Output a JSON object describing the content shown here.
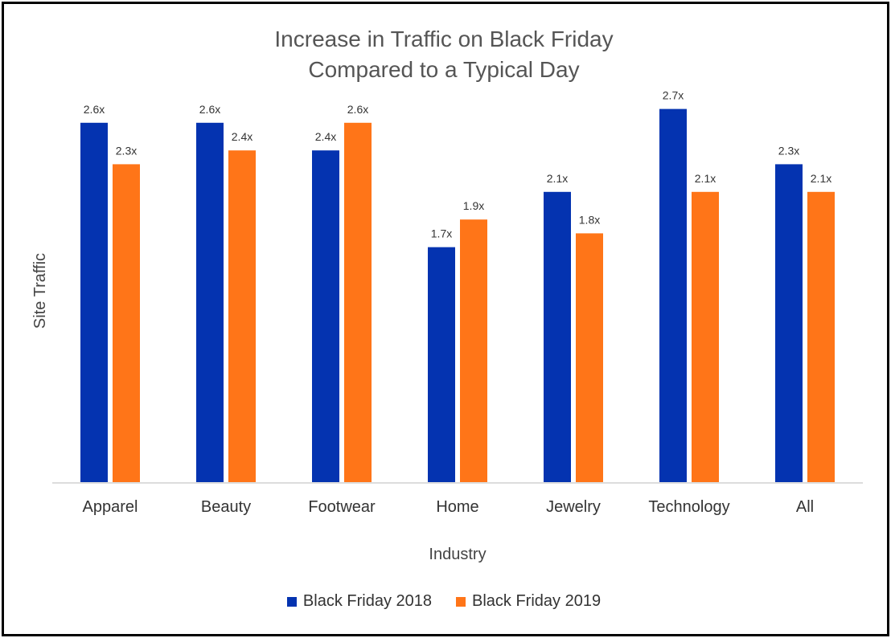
{
  "chart_data": {
    "type": "bar",
    "title_lines": [
      "Increase in Traffic on Black Friday",
      "Compared to a Typical Day"
    ],
    "xlabel": "Industry",
    "ylabel": "Site Traffic",
    "categories": [
      "Apparel",
      "Beauty",
      "Footwear",
      "Home",
      "Jewelry",
      "Technology",
      "All"
    ],
    "series": [
      {
        "name": "Black Friday 2018",
        "color": "#0433B0",
        "values": [
          2.6,
          2.6,
          2.4,
          1.7,
          2.1,
          2.7,
          2.3
        ],
        "labels": [
          "2.6x",
          "2.6x",
          "2.4x",
          "1.7x",
          "2.1x",
          "2.7x",
          "2.3x"
        ]
      },
      {
        "name": "Black Friday 2019",
        "color": "#FF7518",
        "values": [
          2.3,
          2.4,
          2.6,
          1.9,
          1.8,
          2.1,
          2.1
        ],
        "labels": [
          "2.3x",
          "2.4x",
          "2.6x",
          "1.9x",
          "1.8x",
          "2.1x",
          "2.1x"
        ]
      }
    ],
    "ylim": [
      0,
      3.0
    ],
    "grid": false,
    "legend_position": "bottom"
  }
}
